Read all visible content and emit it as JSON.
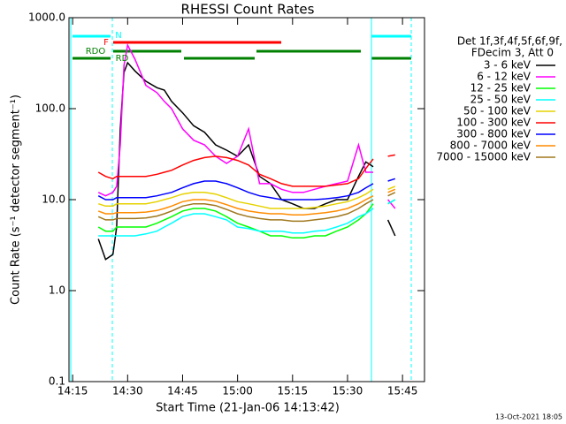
{
  "chart_data": {
    "type": "line",
    "title": "RHESSI Count Rates",
    "x_label": "Start Time (21-Jan-06 14:13:42)",
    "y_label": "Count Rate (s⁻¹ detector segment⁻¹)",
    "legend_title": [
      "Det 1f,3f,4f,5f,6f,9f,",
      "FDecim 3, Att 0"
    ],
    "timestamp": "13-Oct-2021 18:05",
    "annotations": [
      "N",
      "F",
      "RDO",
      "RD"
    ],
    "log_y": true,
    "xlim": [
      "14:14",
      "15:51"
    ],
    "xticks": [
      "14:15",
      "14:30",
      "14:45",
      "15:00",
      "15:15",
      "15:30",
      "15:45"
    ],
    "ylim": [
      0.1,
      1000
    ],
    "yticks": [
      {
        "value": 1000,
        "label": "1000.0"
      },
      {
        "value": 100,
        "label": "100.0"
      },
      {
        "value": 10,
        "label": "10.0"
      },
      {
        "value": 1,
        "label": "1.0"
      },
      0.1
    ],
    "x": [
      "14:22",
      "14:24",
      "14:26",
      "14:27",
      "14:28",
      "14:29",
      "14:30",
      "14:32",
      "14:35",
      "14:38",
      "14:40",
      "14:42",
      "14:45",
      "14:48",
      "14:51",
      "14:54",
      "14:57",
      "15:00",
      "15:03",
      "15:06",
      "15:09",
      "15:12",
      "15:15",
      "15:18",
      "15:21",
      "15:24",
      "15:27",
      "15:30",
      "15:33",
      "15:35",
      "15:37",
      "15:39",
      "15:41",
      "15:43"
    ],
    "series": [
      {
        "name": "3 - 6 keV",
        "color": "#000000",
        "values": [
          3.7,
          2.2,
          2.5,
          5,
          60,
          250,
          320,
          260,
          200,
          170,
          160,
          120,
          90,
          65,
          55,
          40,
          35,
          30,
          40,
          18,
          15,
          10,
          9,
          8,
          8,
          9,
          10,
          10,
          18,
          26,
          23,
          null,
          6,
          4
        ]
      },
      {
        "name": "6 - 12 keV",
        "color": "#ff00ff",
        "values": [
          12,
          11,
          12,
          14,
          40,
          300,
          500,
          350,
          180,
          150,
          120,
          100,
          60,
          45,
          40,
          30,
          25,
          30,
          60,
          15,
          15,
          13,
          12,
          12,
          13,
          14,
          15,
          16,
          40,
          20,
          20,
          null,
          10,
          8
        ]
      },
      {
        "name": "12 - 25 keV",
        "color": "#00ff00",
        "values": [
          5,
          4.5,
          4.5,
          5,
          5,
          5,
          5,
          5,
          5,
          5.5,
          6,
          6.5,
          7.5,
          8,
          8,
          7.5,
          6.5,
          5.5,
          5,
          4.5,
          4,
          4,
          3.8,
          3.8,
          4,
          4,
          4.5,
          5,
          6,
          7,
          9,
          null,
          9,
          10
        ]
      },
      {
        "name": "25 - 50 keV",
        "color": "#00ffff",
        "values": [
          4,
          4,
          4,
          4,
          4,
          4,
          4,
          4,
          4.2,
          4.5,
          5,
          5.5,
          6.5,
          7,
          7,
          6.5,
          6,
          5,
          4.8,
          4.5,
          4.5,
          4.5,
          4.3,
          4.3,
          4.5,
          4.6,
          5,
          5.5,
          6.5,
          7,
          8,
          null,
          9,
          10
        ]
      },
      {
        "name": "50 - 100 keV",
        "color": "#e6d200",
        "values": [
          9,
          8.5,
          8.5,
          9,
          9,
          9,
          9,
          9,
          9,
          9.5,
          10,
          10.5,
          11.5,
          12,
          12,
          11.5,
          10.5,
          9.5,
          9,
          8.5,
          8,
          8,
          8,
          8,
          8.2,
          8.5,
          9,
          9.5,
          10.5,
          11.5,
          13,
          null,
          13,
          14
        ]
      },
      {
        "name": "100 - 300 keV",
        "color": "#ff0000",
        "values": [
          20,
          18,
          17,
          18,
          18,
          18,
          18,
          18,
          18,
          19,
          20,
          21,
          24,
          27,
          29,
          30,
          29,
          27,
          24,
          19,
          17,
          15,
          14,
          14,
          14,
          14,
          14.5,
          15,
          17,
          22,
          28,
          null,
          30,
          31
        ]
      },
      {
        "name": "300 - 800 keV",
        "color": "#0000ff",
        "values": [
          11,
          10,
          10,
          10.5,
          10.5,
          10.5,
          10.5,
          10.5,
          10.5,
          11,
          11.5,
          12,
          13.5,
          15,
          16,
          16,
          15,
          13.5,
          12,
          11,
          10.5,
          10,
          10,
          10,
          10,
          10.2,
          10.5,
          11,
          12,
          13.5,
          15,
          null,
          16,
          17
        ]
      },
      {
        "name": "800 - 7000 keV",
        "color": "#ff8c00",
        "values": [
          7.5,
          7,
          7,
          7.2,
          7.2,
          7.2,
          7.2,
          7.2,
          7.3,
          7.6,
          8,
          8.5,
          9.5,
          10,
          10,
          9.6,
          8.8,
          8,
          7.5,
          7.2,
          7,
          7,
          6.8,
          6.8,
          7,
          7.2,
          7.5,
          8,
          9,
          10,
          11,
          null,
          12,
          13
        ]
      },
      {
        "name": "7000 - 15000 keV",
        "color": "#a0781e",
        "values": [
          6.5,
          6,
          6,
          6.2,
          6.2,
          6.2,
          6.2,
          6.2,
          6.3,
          6.6,
          7,
          7.5,
          8.5,
          9,
          9,
          8.6,
          7.8,
          7,
          6.5,
          6.2,
          6,
          6,
          5.8,
          5.8,
          6,
          6.2,
          6.5,
          7,
          8,
          9,
          10,
          null,
          11,
          12
        ]
      }
    ]
  }
}
